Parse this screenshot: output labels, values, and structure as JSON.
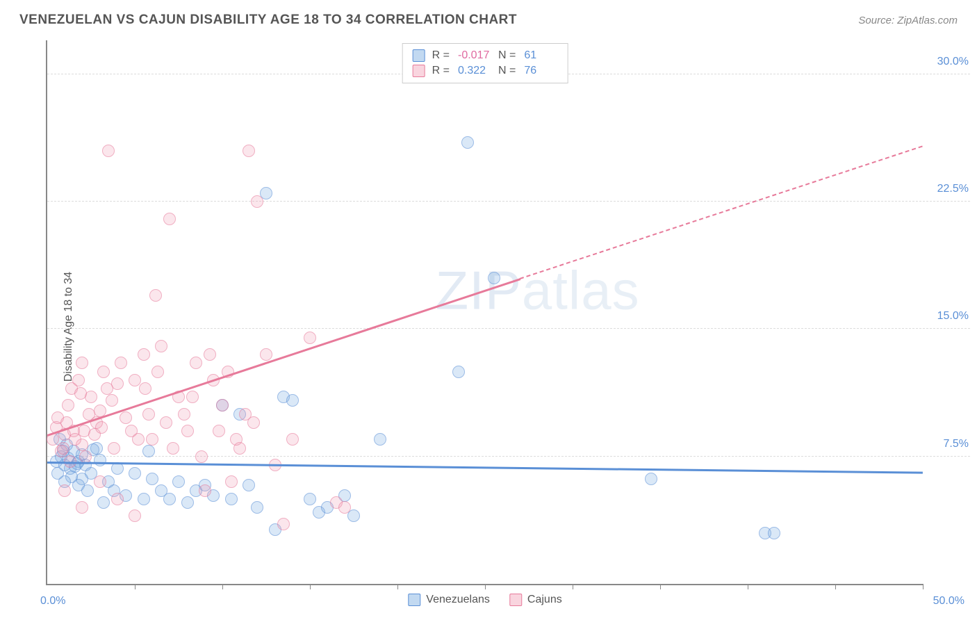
{
  "header": {
    "title": "VENEZUELAN VS CAJUN DISABILITY AGE 18 TO 34 CORRELATION CHART",
    "source_prefix": "Source: ",
    "source": "ZipAtlas.com"
  },
  "chart": {
    "type": "scatter",
    "ylabel": "Disability Age 18 to 34",
    "xlim": [
      0,
      50
    ],
    "ylim": [
      0,
      32
    ],
    "x_ticks": [
      0,
      5,
      10,
      15,
      20,
      25,
      30,
      35,
      40,
      45,
      50
    ],
    "y_gridlines": [
      7.5,
      15.0,
      22.5,
      30.0
    ],
    "y_tick_labels": [
      "7.5%",
      "15.0%",
      "22.5%",
      "30.0%"
    ],
    "x_tick_labels": {
      "left": "0.0%",
      "right": "50.0%"
    },
    "background_color": "#ffffff",
    "grid_color": "#dcdcdc",
    "axis_color": "#888888",
    "watermark": {
      "bold": "ZIP",
      "thin": "atlas"
    },
    "series": [
      {
        "name": "Venezuelans",
        "color_fill": "rgba(120,170,225,0.45)",
        "color_stroke": "#5a8fd6",
        "R": "-0.017",
        "N": "61",
        "regression": {
          "x1": 0,
          "y1": 7.2,
          "x2": 50,
          "y2": 6.6
        },
        "points": [
          [
            0.5,
            7.2
          ],
          [
            0.8,
            7.5
          ],
          [
            1.0,
            7.0
          ],
          [
            1.2,
            7.4
          ],
          [
            1.5,
            7.8
          ],
          [
            1.3,
            6.8
          ],
          [
            1.8,
            7.2
          ],
          [
            2.0,
            7.6
          ],
          [
            1.6,
            6.9
          ],
          [
            2.2,
            7.0
          ],
          [
            2.5,
            6.5
          ],
          [
            2.8,
            8.0
          ],
          [
            2.0,
            6.2
          ],
          [
            3.0,
            7.3
          ],
          [
            0.7,
            8.5
          ],
          [
            1.1,
            8.2
          ],
          [
            1.4,
            6.3
          ],
          [
            3.5,
            6.0
          ],
          [
            3.8,
            5.5
          ],
          [
            4.0,
            6.8
          ],
          [
            4.5,
            5.2
          ],
          [
            5.0,
            6.5
          ],
          [
            5.5,
            5.0
          ],
          [
            5.8,
            7.8
          ],
          [
            6.0,
            6.2
          ],
          [
            6.5,
            5.5
          ],
          [
            7.0,
            5.0
          ],
          [
            7.5,
            6.0
          ],
          [
            8.0,
            4.8
          ],
          [
            8.5,
            5.5
          ],
          [
            9.0,
            5.8
          ],
          [
            9.5,
            5.2
          ],
          [
            10.0,
            10.5
          ],
          [
            10.5,
            5.0
          ],
          [
            11.0,
            10.0
          ],
          [
            11.5,
            5.8
          ],
          [
            12.0,
            4.5
          ],
          [
            12.5,
            23.0
          ],
          [
            13.0,
            3.2
          ],
          [
            13.5,
            11.0
          ],
          [
            14.0,
            10.8
          ],
          [
            15.0,
            5.0
          ],
          [
            15.5,
            4.2
          ],
          [
            16.0,
            4.5
          ],
          [
            17.0,
            5.2
          ],
          [
            17.5,
            4.0
          ],
          [
            19.0,
            8.5
          ],
          [
            23.5,
            12.5
          ],
          [
            24.0,
            26.0
          ],
          [
            25.5,
            18.0
          ],
          [
            34.5,
            6.2
          ],
          [
            41.0,
            3.0
          ],
          [
            41.5,
            3.0
          ],
          [
            1.0,
            6.0
          ],
          [
            1.8,
            5.8
          ],
          [
            2.3,
            5.5
          ],
          [
            3.2,
            4.8
          ],
          [
            0.6,
            6.5
          ],
          [
            0.9,
            7.8
          ],
          [
            1.7,
            7.1
          ],
          [
            2.6,
            7.9
          ]
        ]
      },
      {
        "name": "Cajuns",
        "color_fill": "rgba(240,150,175,0.40)",
        "color_stroke": "#e77a9a",
        "R": "0.322",
        "N": "76",
        "regression": {
          "x1": 0,
          "y1": 8.8,
          "x2": 27,
          "y2": 18.0
        },
        "regression_dash": {
          "x1": 27,
          "y1": 18.0,
          "x2": 50,
          "y2": 25.8
        },
        "points": [
          [
            0.3,
            8.5
          ],
          [
            0.5,
            9.2
          ],
          [
            0.8,
            7.8
          ],
          [
            1.0,
            8.8
          ],
          [
            1.2,
            10.5
          ],
          [
            1.5,
            9.0
          ],
          [
            1.8,
            12.0
          ],
          [
            2.0,
            8.2
          ],
          [
            1.4,
            11.5
          ],
          [
            2.2,
            7.5
          ],
          [
            2.5,
            11.0
          ],
          [
            2.8,
            9.5
          ],
          [
            3.0,
            10.2
          ],
          [
            3.2,
            12.5
          ],
          [
            2.0,
            13.0
          ],
          [
            3.5,
            25.5
          ],
          [
            3.8,
            8.0
          ],
          [
            4.0,
            11.8
          ],
          [
            4.5,
            9.8
          ],
          [
            5.0,
            12.0
          ],
          [
            5.5,
            13.5
          ],
          [
            5.8,
            10.0
          ],
          [
            6.0,
            8.5
          ],
          [
            6.5,
            14.0
          ],
          [
            7.0,
            21.5
          ],
          [
            6.2,
            17.0
          ],
          [
            7.5,
            11.0
          ],
          [
            8.0,
            9.0
          ],
          [
            8.5,
            13.0
          ],
          [
            9.0,
            5.5
          ],
          [
            9.5,
            12.0
          ],
          [
            10.0,
            10.5
          ],
          [
            10.5,
            6.0
          ],
          [
            11.0,
            8.0
          ],
          [
            11.5,
            25.5
          ],
          [
            11.8,
            9.5
          ],
          [
            12.0,
            22.5
          ],
          [
            12.5,
            13.5
          ],
          [
            13.0,
            7.0
          ],
          [
            13.5,
            3.5
          ],
          [
            14.0,
            8.5
          ],
          [
            15.0,
            14.5
          ],
          [
            16.5,
            4.8
          ],
          [
            17.0,
            4.5
          ],
          [
            0.6,
            9.8
          ],
          [
            0.9,
            8.0
          ],
          [
            1.1,
            9.5
          ],
          [
            1.3,
            7.2
          ],
          [
            1.6,
            8.5
          ],
          [
            1.9,
            11.2
          ],
          [
            2.1,
            9.0
          ],
          [
            2.4,
            10.0
          ],
          [
            2.7,
            8.8
          ],
          [
            3.1,
            9.2
          ],
          [
            3.4,
            11.5
          ],
          [
            3.7,
            10.8
          ],
          [
            4.2,
            13.0
          ],
          [
            4.8,
            9.0
          ],
          [
            5.2,
            8.5
          ],
          [
            5.6,
            11.5
          ],
          [
            6.3,
            12.5
          ],
          [
            6.8,
            9.5
          ],
          [
            7.2,
            8.0
          ],
          [
            7.8,
            10.0
          ],
          [
            8.3,
            11.0
          ],
          [
            8.8,
            7.5
          ],
          [
            9.3,
            13.5
          ],
          [
            9.8,
            9.0
          ],
          [
            10.3,
            12.5
          ],
          [
            10.8,
            8.5
          ],
          [
            11.3,
            10.0
          ],
          [
            1.0,
            5.5
          ],
          [
            2.0,
            4.5
          ],
          [
            3.0,
            6.0
          ],
          [
            4.0,
            5.0
          ],
          [
            5.0,
            4.0
          ]
        ]
      }
    ]
  },
  "legend_top": {
    "rows": [
      {
        "swatch": "blue",
        "r_label": "R =",
        "r_value": "-0.017",
        "r_neg": true,
        "n_label": "N =",
        "n_value": "61"
      },
      {
        "swatch": "pink",
        "r_label": "R =",
        "r_value": "0.322",
        "r_neg": false,
        "n_label": "N =",
        "n_value": "76"
      }
    ]
  },
  "legend_bottom": [
    {
      "swatch": "blue",
      "label": "Venezuelans"
    },
    {
      "swatch": "pink",
      "label": "Cajuns"
    }
  ]
}
